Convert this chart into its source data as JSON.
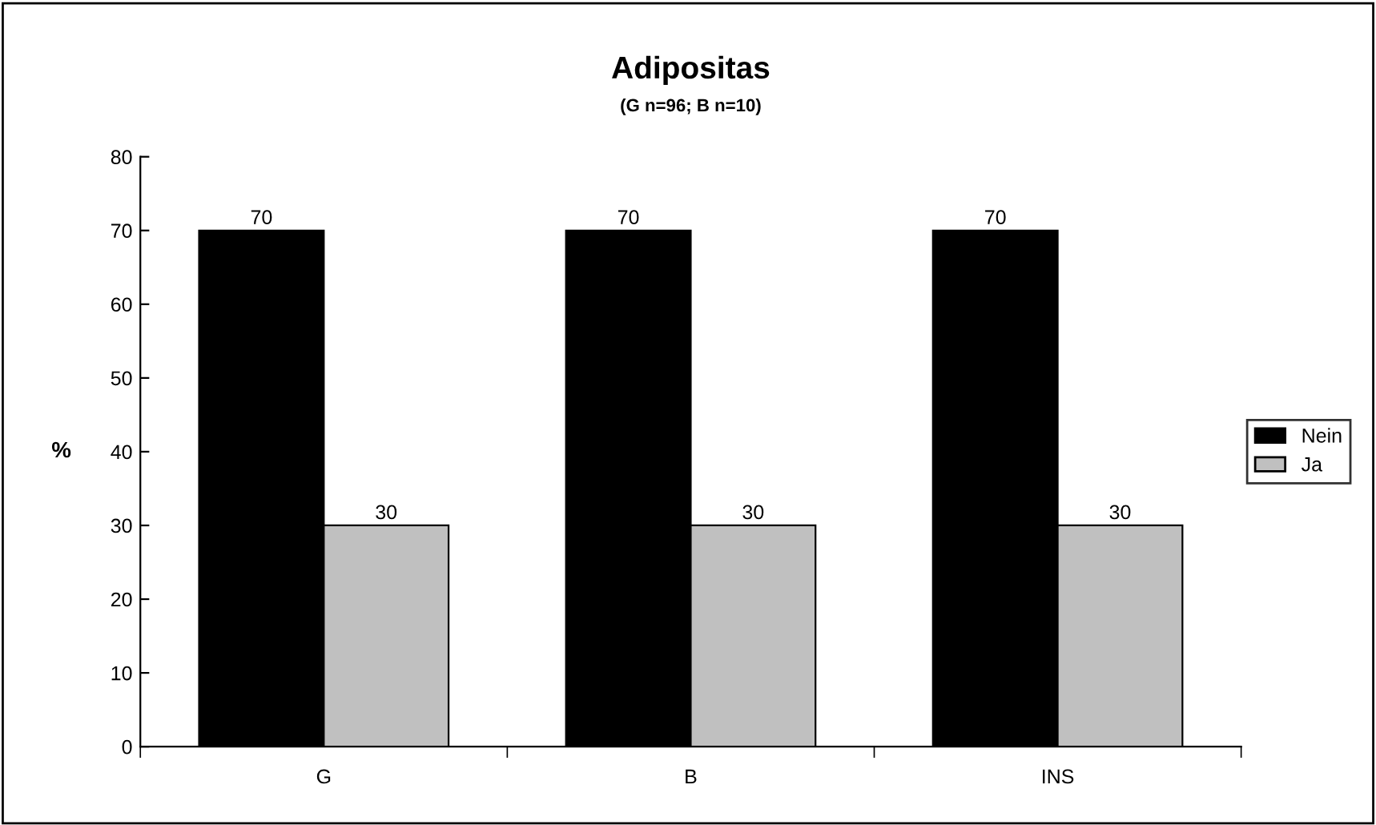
{
  "chart_data": {
    "type": "bar",
    "title": "Adipositas",
    "subtitle": "(G n=96; B n=10)",
    "ylabel": "%",
    "categories": [
      "G",
      "B",
      "INS"
    ],
    "series": [
      {
        "name": "Nein",
        "color": "#000000",
        "values": [
          70,
          70,
          70
        ]
      },
      {
        "name": "Ja",
        "color": "#c0c0c0",
        "values": [
          30,
          30,
          30
        ]
      }
    ],
    "ylim": [
      0,
      80
    ],
    "yticks": [
      0,
      10,
      20,
      30,
      40,
      50,
      60,
      70,
      80
    ],
    "grid": false,
    "legend": "right",
    "data_labels": true
  }
}
